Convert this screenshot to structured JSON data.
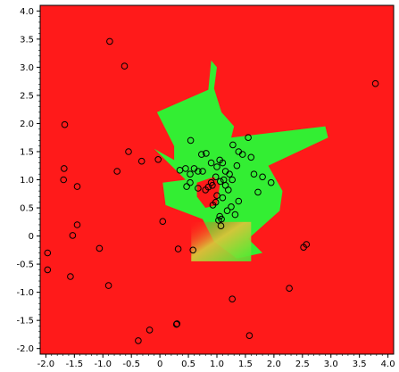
{
  "chart_data": {
    "type": "scatter",
    "title": "",
    "xlabel": "",
    "ylabel": "",
    "xlim": [
      -2.1,
      4.1
    ],
    "ylim": [
      -2.1,
      4.1
    ],
    "x_ticks": [
      "-2.0",
      "-1.5",
      "-1.0",
      "-0.5",
      "0",
      "0.5",
      "1.0",
      "1.5",
      "2.0",
      "2.5",
      "3.0",
      "3.5",
      "4.0"
    ],
    "y_ticks": [
      "-2.0",
      "-1.5",
      "-1.0",
      "-0.5",
      "0",
      "0.5",
      "1.0",
      "1.5",
      "2.0",
      "2.5",
      "3.0",
      "3.5",
      "4.0"
    ],
    "grid": false,
    "background_class_color": "#ff1a1a",
    "region_class_color": "#33ee33",
    "marker_stroke_color": "#000000",
    "decision_region": [
      [
        -0.05,
        2.2
      ],
      [
        0.85,
        2.6
      ],
      [
        0.9,
        3.12
      ],
      [
        1.0,
        3.0
      ],
      [
        0.95,
        2.62
      ],
      [
        1.08,
        2.2
      ],
      [
        1.3,
        1.95
      ],
      [
        1.25,
        1.75
      ],
      [
        2.9,
        1.95
      ],
      [
        2.95,
        1.75
      ],
      [
        1.9,
        1.25
      ],
      [
        2.15,
        0.8
      ],
      [
        2.1,
        0.45
      ],
      [
        1.55,
        -0.05
      ],
      [
        1.8,
        -0.3
      ],
      [
        1.35,
        -0.4
      ],
      [
        0.95,
        -0.1
      ],
      [
        0.75,
        0.3
      ],
      [
        0.1,
        0.55
      ],
      [
        0.05,
        0.95
      ],
      [
        0.45,
        1.0
      ],
      [
        -0.1,
        1.55
      ],
      [
        0.25,
        1.35
      ],
      [
        0.25,
        1.6
      ]
    ],
    "series": [
      {
        "marker": "hollow-circle",
        "x": [
          -0.88,
          -0.62,
          -1.67,
          -1.68,
          -1.69,
          -1.45,
          -0.55,
          -0.32,
          -0.03,
          -0.75,
          -1.45,
          -1.53,
          -1.06,
          -1.97,
          -1.97,
          -1.57,
          -0.9,
          0.05,
          0.32,
          0.58,
          0.29,
          0.3,
          -0.18,
          -0.38,
          1.27,
          1.57,
          2.27,
          2.52,
          2.57,
          3.78,
          0.54,
          0.6,
          0.81,
          0.9,
          0.73,
          0.75,
          0.67,
          0.53,
          0.45,
          0.35,
          0.53,
          0.47,
          0.67,
          0.8,
          0.85,
          0.92,
          0.98,
          1.0,
          1.05,
          1.1,
          1.15,
          1.22,
          1.27,
          1.28,
          1.35,
          1.38,
          1.45,
          1.55,
          1.6,
          1.65,
          1.72,
          1.8,
          1.95,
          1.15,
          1.06,
          0.98,
          0.93,
          0.9,
          1.0,
          1.1,
          1.18,
          1.25,
          1.32,
          1.38,
          1.2,
          1.12,
          1.05,
          1.03,
          1.07,
          1.08
        ],
        "y": [
          3.46,
          3.02,
          1.98,
          1.2,
          1.0,
          0.88,
          1.5,
          1.33,
          1.36,
          1.15,
          0.2,
          0.01,
          -0.22,
          -0.3,
          -0.6,
          -0.72,
          -0.88,
          0.26,
          -0.23,
          -0.25,
          -1.57,
          -1.56,
          -1.67,
          -1.86,
          -1.12,
          -1.77,
          -0.93,
          -0.2,
          -0.15,
          2.71,
          1.7,
          1.2,
          1.47,
          1.3,
          1.45,
          1.15,
          1.15,
          1.1,
          1.2,
          1.17,
          0.95,
          0.88,
          0.85,
          0.82,
          0.87,
          0.9,
          1.05,
          1.23,
          1.35,
          1.3,
          1.15,
          1.1,
          1.0,
          1.62,
          1.25,
          1.5,
          1.45,
          1.75,
          1.4,
          1.1,
          0.78,
          1.05,
          0.95,
          0.9,
          0.97,
          0.6,
          0.55,
          0.95,
          0.72,
          0.68,
          0.45,
          0.52,
          0.38,
          0.62,
          0.82,
          1.0,
          0.35,
          0.28,
          0.18,
          0.3
        ]
      }
    ]
  }
}
